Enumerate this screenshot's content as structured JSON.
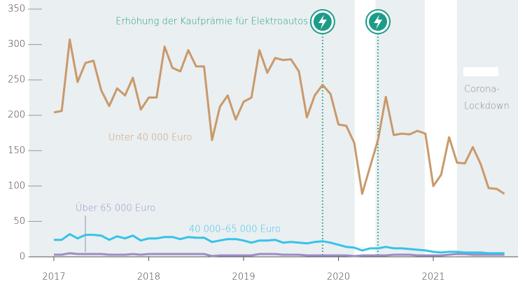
{
  "chart_data": {
    "type": "line",
    "x": [
      2017,
      2017.083,
      2017.167,
      2017.25,
      2017.333,
      2017.417,
      2017.5,
      2017.583,
      2017.667,
      2017.75,
      2017.833,
      2017.917,
      2018,
      2018.083,
      2018.167,
      2018.25,
      2018.333,
      2018.417,
      2018.5,
      2018.583,
      2018.667,
      2018.75,
      2018.833,
      2018.917,
      2019,
      2019.083,
      2019.167,
      2019.25,
      2019.333,
      2019.417,
      2019.5,
      2019.583,
      2019.667,
      2019.75,
      2019.833,
      2019.917,
      2020,
      2020.083,
      2020.167,
      2020.25,
      2020.333,
      2020.417,
      2020.5,
      2020.583,
      2020.667,
      2020.75,
      2020.833,
      2020.917,
      2021,
      2021.083,
      2021.167,
      2021.25,
      2021.333,
      2021.417,
      2021.5,
      2021.583,
      2021.667,
      2021.75
    ],
    "series": [
      {
        "name": "Unter 40 000 Euro",
        "color": "#c9996b",
        "values": [
          204,
          206,
          307,
          247,
          274,
          277,
          235,
          213,
          238,
          228,
          253,
          208,
          225,
          225,
          297,
          267,
          262,
          292,
          269,
          269,
          165,
          212,
          228,
          194,
          219,
          225,
          292,
          260,
          281,
          278,
          279,
          262,
          197,
          228,
          243,
          230,
          187,
          185,
          161,
          89,
          127,
          165,
          226,
          172,
          174,
          173,
          178,
          174,
          100,
          116,
          169,
          133,
          132,
          155,
          131,
          97,
          96,
          89
        ]
      },
      {
        "name": "40 000–65 000 Euro",
        "color": "#35c3e8",
        "values": [
          24,
          24,
          32,
          26,
          31,
          31,
          30,
          24,
          29,
          26,
          30,
          23,
          26,
          26,
          28,
          28,
          25,
          28,
          27,
          27,
          21,
          23,
          25,
          25,
          23,
          20,
          23,
          23,
          24,
          20,
          21,
          20,
          19,
          21,
          22,
          20,
          17,
          14,
          13,
          9,
          12,
          12,
          14,
          12,
          12,
          11,
          10,
          9,
          7,
          6,
          7,
          7,
          6,
          6,
          6,
          5,
          5,
          5
        ]
      },
      {
        "name": "Über 65 000 Euro",
        "color": "#9c8dc3",
        "values": [
          3,
          3,
          5,
          4,
          4,
          4,
          4,
          3,
          3,
          3,
          4,
          3,
          4,
          4,
          4,
          4,
          4,
          4,
          4,
          4,
          1,
          2,
          2,
          2,
          2,
          2,
          4,
          4,
          4,
          3,
          3,
          3,
          2,
          2,
          2,
          2,
          2,
          2,
          1,
          2,
          2,
          2,
          2,
          3,
          3,
          3,
          2,
          2,
          2,
          2,
          3,
          4,
          4,
          3,
          3,
          3,
          3,
          3
        ]
      }
    ],
    "xlim": [
      2016.742,
      2021.893
    ],
    "xticks": [
      2017,
      2018,
      2019,
      2020,
      2021
    ],
    "ylim": [
      0,
      350
    ],
    "yticks": [
      0,
      50,
      100,
      150,
      200,
      250,
      300,
      350
    ],
    "shaded_periods": {
      "label": [
        "Corona-",
        "Lockdown"
      ],
      "ranges": [
        [
          2020.17,
          2020.39
        ],
        [
          2020.91,
          2021.25
        ]
      ]
    },
    "events": {
      "label": "Erhöhung der Kaufprämie für Elektroautos",
      "x": [
        2019.833,
        2020.417
      ]
    }
  }
}
